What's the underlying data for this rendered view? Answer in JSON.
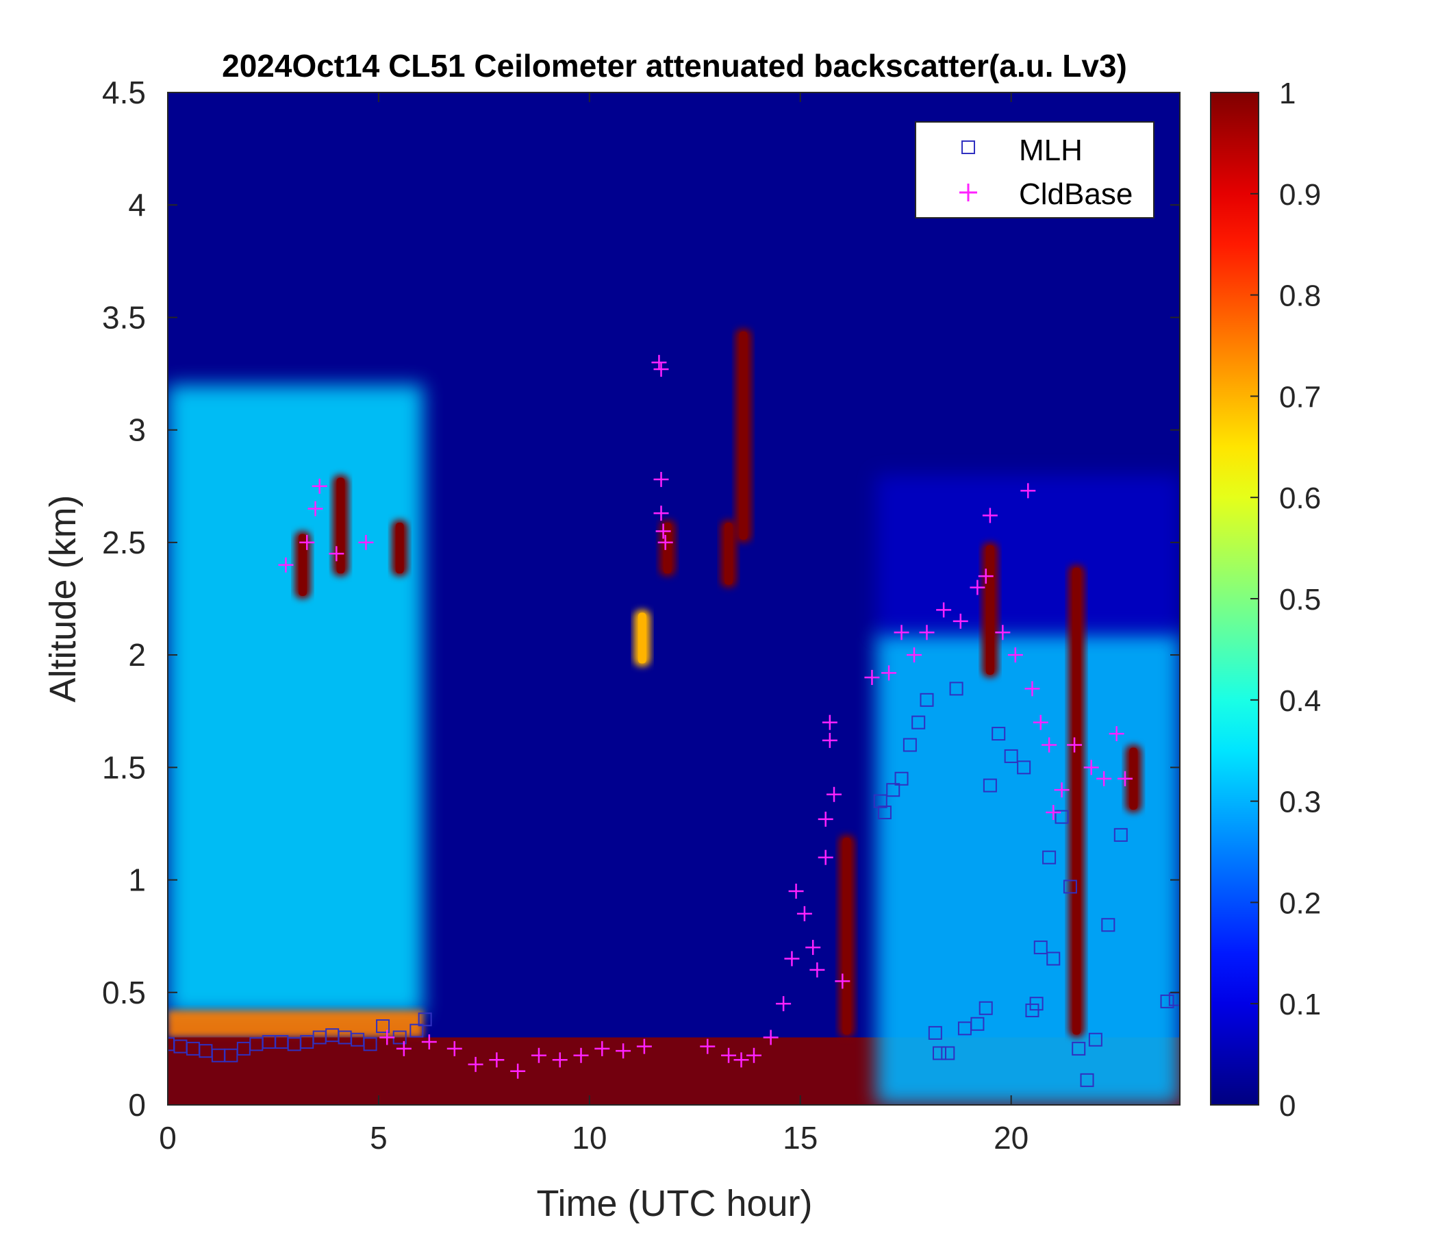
{
  "chart_data": {
    "type": "heatmap",
    "title": "2024Oct14 CL51 Ceilometer attenuated backscatter(a.u. Lv3)",
    "xlabel": "Time (UTC hour)",
    "ylabel": "Altitude (km)",
    "xlim": [
      0,
      24
    ],
    "ylim": [
      0,
      4.5
    ],
    "x_ticks": [
      0,
      5,
      10,
      15,
      20
    ],
    "y_ticks": [
      0,
      0.5,
      1,
      1.5,
      2,
      2.5,
      3,
      3.5,
      4,
      4.5
    ],
    "x_tick_labels": [
      "0",
      "5",
      "10",
      "15",
      "20"
    ],
    "y_tick_labels": [
      "0",
      "0.5",
      "1",
      "1.5",
      "2",
      "2.5",
      "3",
      "3.5",
      "4",
      "4.5"
    ],
    "colorbar": {
      "range": [
        0,
        1
      ],
      "colormap": "jet",
      "ticks": [
        0,
        0.1,
        0.2,
        0.3,
        0.4,
        0.5,
        0.6,
        0.7,
        0.8,
        0.9,
        1
      ],
      "tick_labels": [
        "0",
        "0.1",
        "0.2",
        "0.3",
        "0.4",
        "0.5",
        "0.6",
        "0.7",
        "0.8",
        "0.9",
        "1"
      ]
    },
    "legend": {
      "placement": "top-right",
      "entries": [
        {
          "name": "MLH",
          "marker": "square",
          "color": "#3030c0"
        },
        {
          "name": "CldBase",
          "marker": "plus",
          "color": "#ff22ff"
        }
      ]
    },
    "regions": [
      {
        "t0": 0,
        "t1": 6.05,
        "alt0": 0.4,
        "alt1": 3.2,
        "value": 0.33
      },
      {
        "t0": 0,
        "t1": 6.05,
        "alt0": 0.3,
        "alt1": 0.42,
        "value": 0.75
      },
      {
        "t0": 0,
        "t1": 24,
        "alt0": 0,
        "alt1": 0.3,
        "value": 1.0
      },
      {
        "t0": 16.8,
        "t1": 24,
        "alt0": 0,
        "alt1": 2.1,
        "value": 0.3
      },
      {
        "t0": 16.8,
        "t1": 24,
        "alt0": 2.1,
        "alt1": 2.8,
        "value": 0.1
      }
    ],
    "clouds": [
      {
        "t": 3.2,
        "alt0": 2.25,
        "alt1": 2.55,
        "value": 1.0
      },
      {
        "t": 4.1,
        "alt0": 2.35,
        "alt1": 2.8,
        "value": 1.0
      },
      {
        "t": 5.5,
        "alt0": 2.35,
        "alt1": 2.6,
        "value": 1.0
      },
      {
        "t": 11.25,
        "alt0": 1.95,
        "alt1": 2.2,
        "value": 0.7
      },
      {
        "t": 11.85,
        "alt0": 2.35,
        "alt1": 2.6,
        "value": 1.0
      },
      {
        "t": 13.3,
        "alt0": 2.3,
        "alt1": 2.6,
        "value": 1.0
      },
      {
        "t": 13.65,
        "alt0": 2.5,
        "alt1": 3.45,
        "value": 1.0
      },
      {
        "t": 16.1,
        "alt0": 0.3,
        "alt1": 1.2,
        "value": 1.0
      },
      {
        "t": 19.5,
        "alt0": 1.9,
        "alt1": 2.5,
        "value": 1.0
      },
      {
        "t": 21.55,
        "alt0": 0.3,
        "alt1": 2.4,
        "value": 1.0
      },
      {
        "t": 22.9,
        "alt0": 1.3,
        "alt1": 1.6,
        "value": 1.0
      }
    ],
    "series": [
      {
        "name": "MLH",
        "points": [
          [
            0,
            0.27
          ],
          [
            0.3,
            0.26
          ],
          [
            0.6,
            0.25
          ],
          [
            0.9,
            0.24
          ],
          [
            1.2,
            0.22
          ],
          [
            1.5,
            0.22
          ],
          [
            1.8,
            0.25
          ],
          [
            2.1,
            0.27
          ],
          [
            2.4,
            0.28
          ],
          [
            2.7,
            0.28
          ],
          [
            3.0,
            0.27
          ],
          [
            3.3,
            0.28
          ],
          [
            3.6,
            0.3
          ],
          [
            3.9,
            0.31
          ],
          [
            4.2,
            0.3
          ],
          [
            4.5,
            0.29
          ],
          [
            4.8,
            0.27
          ],
          [
            5.1,
            0.35
          ],
          [
            5.5,
            0.3
          ],
          [
            5.9,
            0.33
          ],
          [
            6.1,
            0.38
          ],
          [
            16.9,
            1.35
          ],
          [
            17.0,
            1.3
          ],
          [
            17.2,
            1.4
          ],
          [
            17.4,
            1.45
          ],
          [
            17.6,
            1.6
          ],
          [
            17.8,
            1.7
          ],
          [
            18.0,
            1.8
          ],
          [
            18.2,
            0.32
          ],
          [
            18.3,
            0.23
          ],
          [
            18.5,
            0.23
          ],
          [
            18.7,
            1.85
          ],
          [
            18.9,
            0.34
          ],
          [
            19.2,
            0.36
          ],
          [
            19.4,
            0.43
          ],
          [
            19.5,
            1.42
          ],
          [
            19.7,
            1.65
          ],
          [
            20.0,
            1.55
          ],
          [
            20.3,
            1.5
          ],
          [
            20.5,
            0.42
          ],
          [
            20.6,
            0.45
          ],
          [
            20.7,
            0.7
          ],
          [
            20.9,
            1.1
          ],
          [
            21.0,
            0.65
          ],
          [
            21.2,
            1.28
          ],
          [
            21.4,
            0.97
          ],
          [
            21.6,
            0.25
          ],
          [
            21.8,
            0.11
          ],
          [
            22.0,
            0.29
          ],
          [
            22.3,
            0.8
          ],
          [
            22.6,
            1.2
          ],
          [
            23.7,
            0.46
          ],
          [
            23.9,
            0.47
          ]
        ]
      },
      {
        "name": "CldBase",
        "points": [
          [
            2.8,
            2.4
          ],
          [
            3.3,
            2.5
          ],
          [
            3.5,
            2.65
          ],
          [
            3.6,
            2.75
          ],
          [
            4.0,
            2.45
          ],
          [
            4.7,
            2.5
          ],
          [
            5.2,
            0.3
          ],
          [
            5.6,
            0.25
          ],
          [
            6.2,
            0.28
          ],
          [
            6.8,
            0.25
          ],
          [
            7.3,
            0.18
          ],
          [
            7.8,
            0.2
          ],
          [
            8.3,
            0.15
          ],
          [
            8.8,
            0.22
          ],
          [
            9.3,
            0.2
          ],
          [
            9.8,
            0.22
          ],
          [
            10.3,
            0.25
          ],
          [
            10.8,
            0.24
          ],
          [
            11.3,
            0.26
          ],
          [
            11.65,
            3.3
          ],
          [
            11.7,
            3.27
          ],
          [
            11.7,
            2.78
          ],
          [
            11.7,
            2.63
          ],
          [
            11.75,
            2.55
          ],
          [
            11.8,
            2.5
          ],
          [
            12.8,
            0.26
          ],
          [
            13.3,
            0.22
          ],
          [
            13.6,
            0.2
          ],
          [
            13.9,
            0.22
          ],
          [
            14.3,
            0.3
          ],
          [
            14.6,
            0.45
          ],
          [
            14.8,
            0.65
          ],
          [
            14.9,
            0.95
          ],
          [
            15.1,
            0.85
          ],
          [
            15.3,
            0.7
          ],
          [
            15.4,
            0.6
          ],
          [
            15.6,
            1.1
          ],
          [
            15.6,
            1.27
          ],
          [
            15.7,
            1.62
          ],
          [
            15.7,
            1.7
          ],
          [
            15.8,
            1.38
          ],
          [
            16.0,
            0.55
          ],
          [
            16.7,
            1.9
          ],
          [
            17.1,
            1.92
          ],
          [
            17.4,
            2.1
          ],
          [
            17.7,
            2.0
          ],
          [
            18.0,
            2.1
          ],
          [
            18.4,
            2.2
          ],
          [
            18.8,
            2.15
          ],
          [
            19.2,
            2.3
          ],
          [
            19.4,
            2.35
          ],
          [
            19.5,
            2.62
          ],
          [
            19.8,
            2.1
          ],
          [
            20.1,
            2.0
          ],
          [
            20.4,
            2.73
          ],
          [
            20.5,
            1.85
          ],
          [
            20.7,
            1.7
          ],
          [
            20.9,
            1.6
          ],
          [
            21.0,
            1.3
          ],
          [
            21.2,
            1.4
          ],
          [
            21.5,
            1.6
          ],
          [
            21.9,
            1.5
          ],
          [
            22.2,
            1.45
          ],
          [
            22.5,
            1.65
          ],
          [
            22.7,
            1.45
          ]
        ]
      }
    ]
  }
}
